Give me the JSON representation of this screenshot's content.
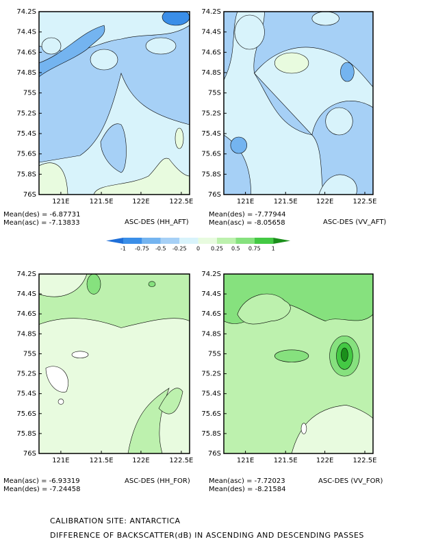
{
  "panels": [
    {
      "label": "ASC-DES (HH_AFT)",
      "means": [
        "Mean(des) = -6.87731",
        "Mean(asc) = -7.13833"
      ]
    },
    {
      "label": "ASC-DES (VV_AFT)",
      "means": [
        "Mean(des) = -7.77944",
        "Mean(asc) = -8.05658"
      ]
    },
    {
      "label": "ASC-DES (HH_FOR)",
      "means": [
        "Mean(asc) = -6.93319",
        "Mean(des) = -7.24458"
      ]
    },
    {
      "label": "ASC-DES (VV_FOR)",
      "means": [
        "Mean(asc) = -7.72023",
        "Mean(des) = -8.21584"
      ]
    }
  ],
  "yticks": [
    "74.2S",
    "74.4S",
    "74.6S",
    "74.8S",
    "75S",
    "75.2S",
    "75.4S",
    "75.6S",
    "75.8S",
    "76S"
  ],
  "xticks": [
    "121E",
    "121.5E",
    "122E",
    "122.5E"
  ],
  "colorbar": {
    "levels": [
      -1,
      -0.75,
      -0.5,
      -0.25,
      0,
      0.25,
      0.5,
      0.75,
      1
    ],
    "colors": [
      "#1f6fd8",
      "#3a8ee8",
      "#74b4f0",
      "#a6d0f6",
      "#d8f3fb",
      "#e8fbdf",
      "#bdf1ae",
      "#86e17e",
      "#44c944",
      "#1b8f1b"
    ]
  },
  "footer": [
    "CALIBRATION SITE: ANTARCTICA",
    "DIFFERENCE OF BACKSCATTER(dB) IN ASCENDING AND DESCENDING PASSES"
  ]
}
